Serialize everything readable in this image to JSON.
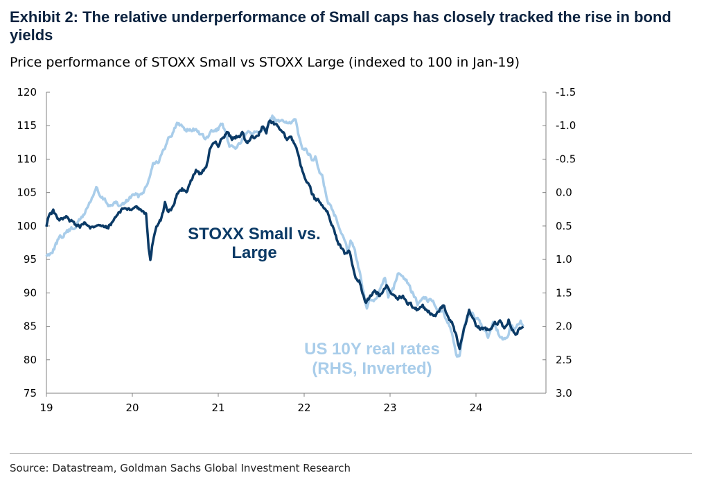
{
  "title": "Exhibit 2: The relative underperformance of Small caps has closely tracked the rise in bond yields",
  "subtitle": "Price performance of STOXX Small vs STOXX Large (indexed to 100 in Jan-19)",
  "source": "Source: Datastream, Goldman Sachs Global Investment Research",
  "colors": {
    "small_vs_large": "#0b3a66",
    "real_rates": "#a9cdea",
    "axis": "#808080",
    "title": "#0c2340"
  },
  "chart_data": {
    "type": "line",
    "x_range": [
      2019.0,
      2024.75
    ],
    "x_ticks": [
      {
        "value": 2019,
        "label": "19"
      },
      {
        "value": 2020,
        "label": "20"
      },
      {
        "value": 2021,
        "label": "21"
      },
      {
        "value": 2022,
        "label": "22"
      },
      {
        "value": 2023,
        "label": "23"
      },
      {
        "value": 2024,
        "label": "24"
      }
    ],
    "y_left": {
      "range": [
        75,
        120
      ],
      "ticks": [
        "75",
        "80",
        "85",
        "90",
        "95",
        "100",
        "105",
        "110",
        "115",
        "120"
      ]
    },
    "y_right": {
      "range_top_to_bottom": [
        -1.5,
        3.0
      ],
      "inverted": true,
      "ticks": [
        "-1.5",
        "-1.0",
        "-0.5",
        "0.0",
        "0.5",
        "1.0",
        "1.5",
        "2.0",
        "2.5",
        "3.0"
      ]
    },
    "grid": false,
    "annotations": {
      "small_vs_large": [
        "STOXX Small vs.",
        "Large"
      ],
      "real_rates": [
        "US 10Y real rates",
        "(RHS, Inverted)"
      ]
    },
    "series": [
      {
        "axis": "left",
        "points": [
          [
            2019.0,
            100.0
          ],
          [
            2019.03,
            101.8
          ],
          [
            2019.08,
            102.2
          ],
          [
            2019.15,
            100.8
          ],
          [
            2019.22,
            101.5
          ],
          [
            2019.3,
            100.5
          ],
          [
            2019.38,
            99.8
          ],
          [
            2019.45,
            100.5
          ],
          [
            2019.55,
            99.6
          ],
          [
            2019.65,
            100.2
          ],
          [
            2019.72,
            99.8
          ],
          [
            2019.8,
            101.3
          ],
          [
            2019.88,
            102.6
          ],
          [
            2019.95,
            102.4
          ],
          [
            2020.05,
            102.8
          ],
          [
            2020.12,
            102.0
          ],
          [
            2020.16,
            101.6
          ],
          [
            2020.19,
            96.5
          ],
          [
            2020.21,
            95.0
          ],
          [
            2020.24,
            97.8
          ],
          [
            2020.28,
            99.6
          ],
          [
            2020.33,
            100.8
          ],
          [
            2020.38,
            103.3
          ],
          [
            2020.42,
            102.2
          ],
          [
            2020.47,
            102.8
          ],
          [
            2020.52,
            104.8
          ],
          [
            2020.58,
            105.6
          ],
          [
            2020.63,
            105.0
          ],
          [
            2020.68,
            106.8
          ],
          [
            2020.74,
            108.3
          ],
          [
            2020.8,
            107.7
          ],
          [
            2020.86,
            109.0
          ],
          [
            2020.9,
            111.3
          ],
          [
            2020.95,
            112.5
          ],
          [
            2021.0,
            112.0
          ],
          [
            2021.05,
            113.3
          ],
          [
            2021.1,
            114.0
          ],
          [
            2021.16,
            113.0
          ],
          [
            2021.22,
            113.5
          ],
          [
            2021.28,
            113.8
          ],
          [
            2021.34,
            112.5
          ],
          [
            2021.4,
            113.4
          ],
          [
            2021.46,
            113.2
          ],
          [
            2021.52,
            115.0
          ],
          [
            2021.56,
            114.2
          ],
          [
            2021.6,
            115.8
          ],
          [
            2021.65,
            115.2
          ],
          [
            2021.7,
            114.5
          ],
          [
            2021.76,
            114.0
          ],
          [
            2021.8,
            112.5
          ],
          [
            2021.85,
            113.3
          ],
          [
            2021.9,
            112.0
          ],
          [
            2021.94,
            110.0
          ],
          [
            2021.98,
            108.0
          ],
          [
            2022.02,
            106.5
          ],
          [
            2022.06,
            106.0
          ],
          [
            2022.12,
            104.0
          ],
          [
            2022.17,
            103.8
          ],
          [
            2022.22,
            102.8
          ],
          [
            2022.28,
            101.7
          ],
          [
            2022.33,
            100.0
          ],
          [
            2022.38,
            98.0
          ],
          [
            2022.43,
            96.8
          ],
          [
            2022.47,
            95.8
          ],
          [
            2022.52,
            96.5
          ],
          [
            2022.56,
            94.5
          ],
          [
            2022.6,
            92.5
          ],
          [
            2022.64,
            92.0
          ],
          [
            2022.68,
            90.0
          ],
          [
            2022.71,
            88.5
          ],
          [
            2022.74,
            89.0
          ],
          [
            2022.78,
            89.6
          ],
          [
            2022.82,
            90.5
          ],
          [
            2022.88,
            89.5
          ],
          [
            2022.92,
            90.5
          ],
          [
            2022.96,
            91.0
          ],
          [
            2023.02,
            89.5
          ],
          [
            2023.08,
            89.0
          ],
          [
            2023.14,
            89.6
          ],
          [
            2023.2,
            88.5
          ],
          [
            2023.26,
            88.0
          ],
          [
            2023.32,
            87.4
          ],
          [
            2023.38,
            88.0
          ],
          [
            2023.44,
            87.2
          ],
          [
            2023.5,
            86.6
          ],
          [
            2023.56,
            87.0
          ],
          [
            2023.62,
            88.0
          ],
          [
            2023.66,
            87.2
          ],
          [
            2023.7,
            86.0
          ],
          [
            2023.74,
            85.0
          ],
          [
            2023.78,
            83.0
          ],
          [
            2023.81,
            81.8
          ],
          [
            2023.84,
            83.5
          ],
          [
            2023.88,
            85.5
          ],
          [
            2023.92,
            87.5
          ],
          [
            2023.96,
            86.5
          ],
          [
            2024.0,
            85.2
          ],
          [
            2024.05,
            84.5
          ],
          [
            2024.1,
            84.8
          ],
          [
            2024.16,
            84.2
          ],
          [
            2024.22,
            85.2
          ],
          [
            2024.28,
            85.6
          ],
          [
            2024.33,
            84.8
          ],
          [
            2024.38,
            86.0
          ],
          [
            2024.42,
            84.8
          ],
          [
            2024.46,
            84.0
          ],
          [
            2024.5,
            84.6
          ],
          [
            2024.55,
            85.0
          ]
        ]
      },
      {
        "axis": "right",
        "points": [
          [
            2019.0,
            0.95
          ],
          [
            2019.04,
            0.9
          ],
          [
            2019.08,
            0.85
          ],
          [
            2019.13,
            0.72
          ],
          [
            2019.18,
            0.66
          ],
          [
            2019.24,
            0.58
          ],
          [
            2019.3,
            0.55
          ],
          [
            2019.36,
            0.46
          ],
          [
            2019.42,
            0.36
          ],
          [
            2019.48,
            0.22
          ],
          [
            2019.54,
            0.05
          ],
          [
            2019.58,
            -0.07
          ],
          [
            2019.63,
            0.08
          ],
          [
            2019.68,
            0.12
          ],
          [
            2019.74,
            0.2
          ],
          [
            2019.8,
            0.16
          ],
          [
            2019.86,
            0.2
          ],
          [
            2019.92,
            0.15
          ],
          [
            2019.97,
            0.08
          ],
          [
            2020.02,
            0.03
          ],
          [
            2020.07,
            0.06
          ],
          [
            2020.12,
            -0.02
          ],
          [
            2020.17,
            -0.1
          ],
          [
            2020.2,
            -0.25
          ],
          [
            2020.24,
            -0.45
          ],
          [
            2020.3,
            -0.47
          ],
          [
            2020.36,
            -0.6
          ],
          [
            2020.42,
            -0.8
          ],
          [
            2020.47,
            -0.9
          ],
          [
            2020.52,
            -1.03
          ],
          [
            2020.57,
            -1.0
          ],
          [
            2020.62,
            -0.95
          ],
          [
            2020.68,
            -0.93
          ],
          [
            2020.75,
            -0.95
          ],
          [
            2020.8,
            -0.85
          ],
          [
            2020.86,
            -0.8
          ],
          [
            2020.92,
            -0.9
          ],
          [
            2020.98,
            -0.93
          ],
          [
            2021.05,
            -1.02
          ],
          [
            2021.12,
            -0.7
          ],
          [
            2021.18,
            -0.66
          ],
          [
            2021.24,
            -0.72
          ],
          [
            2021.3,
            -0.82
          ],
          [
            2021.36,
            -0.9
          ],
          [
            2021.42,
            -0.9
          ],
          [
            2021.48,
            -0.93
          ],
          [
            2021.54,
            -0.98
          ],
          [
            2021.59,
            -1.05
          ],
          [
            2021.63,
            -1.12
          ],
          [
            2021.67,
            -1.08
          ],
          [
            2021.72,
            -1.04
          ],
          [
            2021.78,
            -1.08
          ],
          [
            2021.84,
            -1.03
          ],
          [
            2021.9,
            -1.06
          ],
          [
            2021.94,
            -0.85
          ],
          [
            2021.98,
            -0.7
          ],
          [
            2022.04,
            -0.6
          ],
          [
            2022.09,
            -0.5
          ],
          [
            2022.13,
            -0.52
          ],
          [
            2022.18,
            -0.3
          ],
          [
            2022.22,
            -0.2
          ],
          [
            2022.26,
            0.08
          ],
          [
            2022.3,
            0.2
          ],
          [
            2022.34,
            0.3
          ],
          [
            2022.38,
            0.38
          ],
          [
            2022.42,
            0.55
          ],
          [
            2022.46,
            0.65
          ],
          [
            2022.5,
            0.85
          ],
          [
            2022.54,
            0.72
          ],
          [
            2022.58,
            0.8
          ],
          [
            2022.62,
            1.05
          ],
          [
            2022.66,
            1.3
          ],
          [
            2022.7,
            1.55
          ],
          [
            2022.73,
            1.75
          ],
          [
            2022.76,
            1.6
          ],
          [
            2022.8,
            1.65
          ],
          [
            2022.86,
            1.5
          ],
          [
            2022.9,
            1.4
          ],
          [
            2022.94,
            1.3
          ],
          [
            2022.98,
            1.55
          ],
          [
            2023.04,
            1.45
          ],
          [
            2023.09,
            1.2
          ],
          [
            2023.14,
            1.3
          ],
          [
            2023.2,
            1.35
          ],
          [
            2023.26,
            1.5
          ],
          [
            2023.32,
            1.65
          ],
          [
            2023.38,
            1.55
          ],
          [
            2023.44,
            1.6
          ],
          [
            2023.5,
            1.62
          ],
          [
            2023.56,
            1.75
          ],
          [
            2023.62,
            1.8
          ],
          [
            2023.66,
            1.9
          ],
          [
            2023.7,
            2.0
          ],
          [
            2023.74,
            2.25
          ],
          [
            2023.78,
            2.45
          ],
          [
            2023.81,
            2.48
          ],
          [
            2023.84,
            2.2
          ],
          [
            2023.88,
            1.95
          ],
          [
            2023.92,
            1.8
          ],
          [
            2023.96,
            1.78
          ],
          [
            2024.0,
            1.9
          ],
          [
            2024.05,
            1.95
          ],
          [
            2024.1,
            2.05
          ],
          [
            2024.14,
            2.15
          ],
          [
            2024.2,
            1.95
          ],
          [
            2024.26,
            2.1
          ],
          [
            2024.31,
            2.2
          ],
          [
            2024.36,
            2.2
          ],
          [
            2024.4,
            2.0
          ],
          [
            2024.44,
            2.05
          ],
          [
            2024.48,
            2.0
          ],
          [
            2024.52,
            1.95
          ],
          [
            2024.55,
            2.0
          ]
        ]
      }
    ]
  }
}
